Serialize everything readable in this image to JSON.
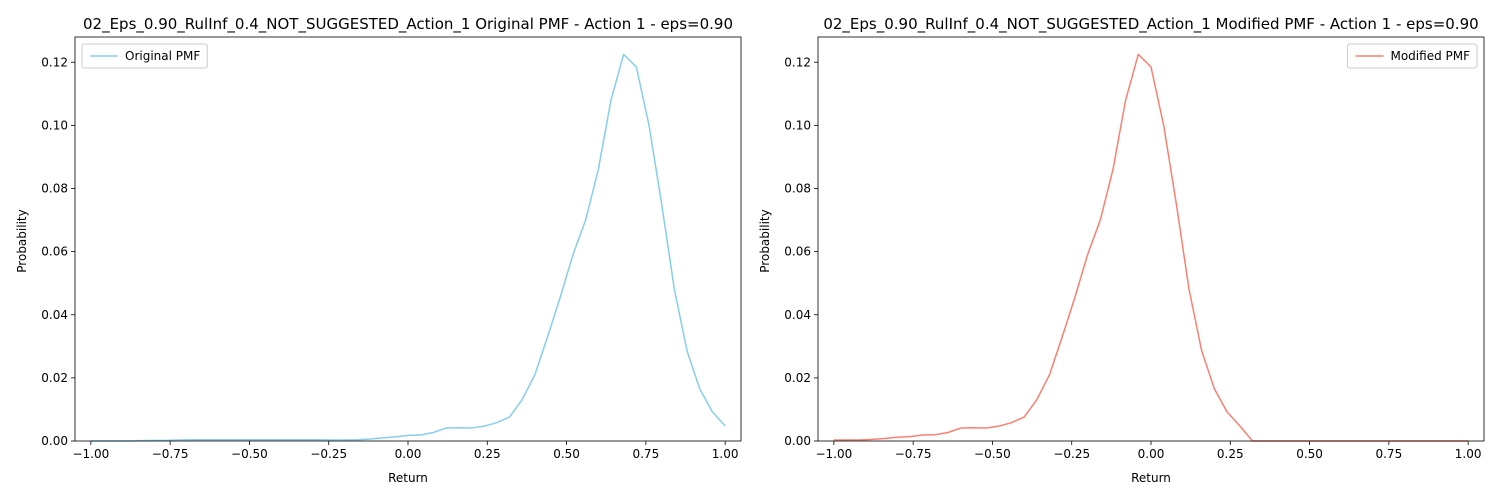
{
  "chart_data": [
    {
      "type": "line",
      "title": "02_Eps_0.90_RulInf_0.4_NOT_SUGGESTED_Action_1 Original PMF - Action 1 - eps=0.90",
      "xlabel": "Return",
      "ylabel": "Probability",
      "xlim": [
        -1.05,
        1.05
      ],
      "ylim": [
        0,
        0.128
      ],
      "xticks": [
        -1.0,
        -0.75,
        -0.5,
        -0.25,
        0.0,
        0.25,
        0.5,
        0.75,
        1.0
      ],
      "xtick_labels": [
        "−1.00",
        "−0.75",
        "−0.50",
        "−0.25",
        "0.00",
        "0.25",
        "0.50",
        "0.75",
        "1.00"
      ],
      "yticks": [
        0,
        0.02,
        0.04,
        0.06,
        0.08,
        0.1,
        0.12
      ],
      "ytick_labels": [
        "0.00",
        "0.02",
        "0.04",
        "0.06",
        "0.08",
        "0.10",
        "0.12"
      ],
      "grid": false,
      "legend_position": "upper-left",
      "color": "#87ceeb",
      "series": [
        {
          "name": "Original PMF",
          "x": [
            -1.0,
            -0.96,
            -0.92,
            -0.88,
            -0.84,
            -0.8,
            -0.76,
            -0.72,
            -0.68,
            -0.64,
            -0.6,
            -0.56,
            -0.52,
            -0.48,
            -0.44,
            -0.4,
            -0.36,
            -0.32,
            -0.28,
            -0.24,
            -0.2,
            -0.16,
            -0.12,
            -0.08,
            -0.04,
            0.0,
            0.04,
            0.08,
            0.12,
            0.16,
            0.2,
            0.24,
            0.28,
            0.32,
            0.36,
            0.4,
            0.44,
            0.48,
            0.52,
            0.56,
            0.6,
            0.64,
            0.68,
            0.72,
            0.76,
            0.8,
            0.84,
            0.88,
            0.92,
            0.96,
            1.0
          ],
          "values": [
            0.0,
            0.0,
            0.0,
            0.0,
            0.0001,
            0.0002,
            0.0002,
            0.0003,
            0.0004,
            0.0004,
            0.0004,
            0.0004,
            0.0004,
            0.0004,
            0.0004,
            0.0004,
            0.0004,
            0.0004,
            0.0004,
            0.0003,
            0.0003,
            0.0004,
            0.0006,
            0.001,
            0.0013,
            0.0018,
            0.0019,
            0.0027,
            0.0041,
            0.0042,
            0.0041,
            0.0047,
            0.0058,
            0.0076,
            0.0131,
            0.021,
            0.033,
            0.0455,
            0.059,
            0.07,
            0.086,
            0.108,
            0.1225,
            0.1185,
            0.1,
            0.075,
            0.048,
            0.0285,
            0.0165,
            0.0092,
            0.0048
          ]
        }
      ]
    },
    {
      "type": "line",
      "title": "02_Eps_0.90_RulInf_0.4_NOT_SUGGESTED_Action_1 Modified PMF - Action 1 - eps=0.90",
      "xlabel": "Return",
      "ylabel": "Probability",
      "xlim": [
        -1.05,
        1.05
      ],
      "ylim": [
        0,
        0.128
      ],
      "xticks": [
        -1.0,
        -0.75,
        -0.5,
        -0.25,
        0.0,
        0.25,
        0.5,
        0.75,
        1.0
      ],
      "xtick_labels": [
        "−1.00",
        "−0.75",
        "−0.50",
        "−0.25",
        "0.00",
        "0.25",
        "0.50",
        "0.75",
        "1.00"
      ],
      "yticks": [
        0,
        0.02,
        0.04,
        0.06,
        0.08,
        0.1,
        0.12
      ],
      "ytick_labels": [
        "0.00",
        "0.02",
        "0.04",
        "0.06",
        "0.08",
        "0.10",
        "0.12"
      ],
      "grid": false,
      "legend_position": "upper-right",
      "color": "#fa8072",
      "series": [
        {
          "name": "Modified PMF",
          "x": [
            -1.0,
            -0.96,
            -0.92,
            -0.88,
            -0.84,
            -0.8,
            -0.76,
            -0.72,
            -0.68,
            -0.64,
            -0.6,
            -0.56,
            -0.52,
            -0.48,
            -0.44,
            -0.4,
            -0.36,
            -0.32,
            -0.28,
            -0.24,
            -0.2,
            -0.16,
            -0.12,
            -0.08,
            -0.04,
            0.0,
            0.04,
            0.08,
            0.12,
            0.16,
            0.2,
            0.24,
            0.28,
            0.32,
            0.36,
            0.4,
            0.44,
            0.48,
            0.52,
            0.56,
            0.6,
            0.64,
            0.68,
            0.72,
            0.76,
            0.8,
            0.84,
            0.88,
            0.92,
            0.96,
            1.0
          ],
          "values": [
            0.0003,
            0.0003,
            0.0003,
            0.0005,
            0.0008,
            0.0012,
            0.0014,
            0.0019,
            0.002,
            0.0027,
            0.0041,
            0.0042,
            0.0041,
            0.0047,
            0.0058,
            0.0076,
            0.0131,
            0.021,
            0.033,
            0.0455,
            0.059,
            0.07,
            0.086,
            0.108,
            0.1225,
            0.1185,
            0.1,
            0.075,
            0.048,
            0.0285,
            0.0165,
            0.0092,
            0.0048,
            0.0,
            0.0,
            0.0,
            0.0,
            0.0,
            0.0,
            0.0,
            0.0,
            0.0,
            0.0,
            0.0,
            0.0,
            0.0,
            0.0,
            0.0,
            0.0,
            0.0,
            0.0
          ]
        }
      ]
    }
  ]
}
